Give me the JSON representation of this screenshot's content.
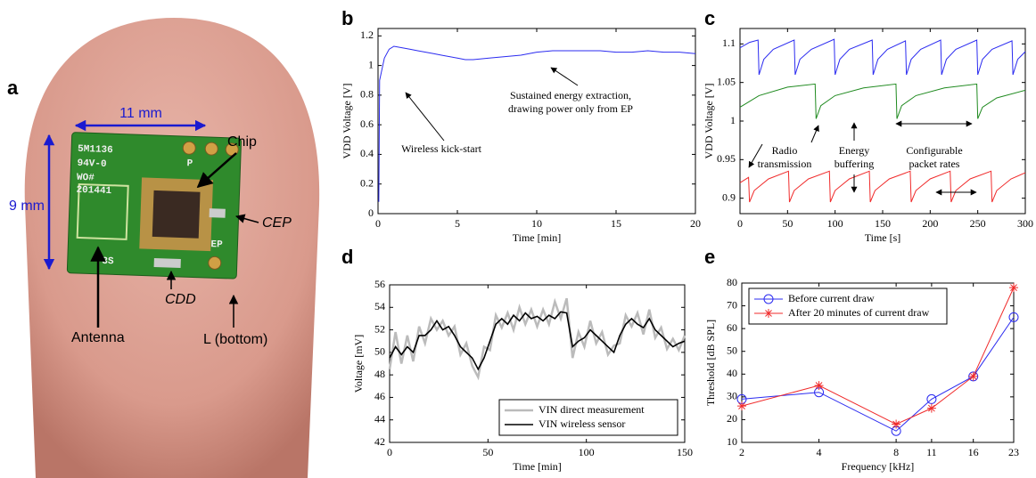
{
  "photo": {
    "panel": "a",
    "labels": [
      "11 mm",
      "9 mm",
      "Chip",
      "CEP",
      "CDD",
      "Antenna",
      "L (bottom)"
    ],
    "chip_text": [
      "5M1136",
      "94V-0",
      "WO#",
      "201441",
      "-3S",
      "P",
      "EP"
    ]
  },
  "chart_data": [
    {
      "type": "line",
      "panel": "b",
      "xlabel": "Time [min]",
      "ylabel": "VDD Voltage [V]",
      "color": "#2b2bf0",
      "x": [
        0.05,
        0.1,
        0.2,
        0.4,
        0.7,
        1,
        1.5,
        2,
        2.5,
        3,
        3.5,
        4,
        4.5,
        5,
        5.5,
        6,
        7,
        8,
        9,
        10,
        11,
        12,
        13,
        14,
        15,
        16,
        17,
        18,
        19,
        20
      ],
      "values": [
        0.08,
        0.9,
        0.95,
        1.05,
        1.11,
        1.13,
        1.12,
        1.11,
        1.1,
        1.09,
        1.08,
        1.07,
        1.06,
        1.05,
        1.04,
        1.04,
        1.05,
        1.06,
        1.07,
        1.09,
        1.1,
        1.1,
        1.1,
        1.1,
        1.09,
        1.09,
        1.1,
        1.09,
        1.09,
        1.08
      ],
      "xlim": [
        0,
        20
      ],
      "xticks": [
        0,
        5,
        10,
        15,
        20
      ],
      "ylim": [
        0,
        1.25
      ],
      "yticks": [
        0,
        0.2,
        0.4,
        0.6,
        0.8,
        1,
        1.2
      ],
      "annotations": [
        [
          "Wireless kick-start"
        ],
        [
          "Sustained energy extraction,",
          "drawing power only from EP"
        ]
      ]
    },
    {
      "type": "line",
      "panel": "c",
      "xlabel": "Time [s]",
      "ylabel": "VDD Voltage [V]",
      "series": [
        {
          "color": "#2b2bf0",
          "x": [
            0,
            10,
            19,
            20,
            25,
            35,
            57,
            58,
            63,
            75,
            99,
            100,
            105,
            115,
            139,
            140,
            145,
            155,
            174,
            175,
            180,
            190,
            211,
            212,
            217,
            227,
            249,
            250,
            255,
            265,
            286,
            287,
            292,
            300
          ],
          "values": [
            1.095,
            1.102,
            1.105,
            1.06,
            1.08,
            1.093,
            1.105,
            1.06,
            1.08,
            1.093,
            1.106,
            1.06,
            1.08,
            1.093,
            1.105,
            1.06,
            1.08,
            1.093,
            1.104,
            1.06,
            1.08,
            1.093,
            1.105,
            1.06,
            1.08,
            1.093,
            1.105,
            1.06,
            1.08,
            1.093,
            1.104,
            1.06,
            1.08,
            1.09
          ]
        },
        {
          "color": "#1f8a1f",
          "x": [
            0,
            20,
            50,
            79,
            80,
            85,
            100,
            130,
            164,
            165,
            170,
            185,
            215,
            249,
            250,
            255,
            270,
            300
          ],
          "values": [
            1.018,
            1.033,
            1.044,
            1.048,
            1.003,
            1.02,
            1.033,
            1.043,
            1.048,
            1.003,
            1.02,
            1.033,
            1.043,
            1.048,
            1.003,
            1.018,
            1.03,
            1.04
          ]
        },
        {
          "color": "#f02b2b",
          "x": [
            0,
            9,
            10,
            15,
            30,
            51,
            52,
            57,
            72,
            94,
            95,
            100,
            115,
            136,
            137,
            142,
            157,
            179,
            180,
            185,
            200,
            221,
            222,
            227,
            242,
            264,
            265,
            270,
            285,
            300
          ],
          "values": [
            0.92,
            0.927,
            0.895,
            0.91,
            0.925,
            0.935,
            0.895,
            0.91,
            0.925,
            0.935,
            0.895,
            0.91,
            0.925,
            0.935,
            0.895,
            0.91,
            0.925,
            0.935,
            0.895,
            0.91,
            0.925,
            0.935,
            0.895,
            0.91,
            0.925,
            0.935,
            0.895,
            0.91,
            0.925,
            0.933
          ]
        }
      ],
      "xlim": [
        0,
        300
      ],
      "xticks": [
        0,
        50,
        100,
        150,
        200,
        250,
        300
      ],
      "ylim": [
        0.88,
        1.12
      ],
      "yticks": [
        0.9,
        0.95,
        1,
        1.05,
        1.1
      ],
      "annotations": [
        [
          "Radio",
          "transmission"
        ],
        [
          "Energy",
          "buffering"
        ],
        [
          "Configurable",
          "packet rates"
        ]
      ]
    },
    {
      "type": "line",
      "panel": "d",
      "xlabel": "Time [min]",
      "ylabel": "Voltage [mV]",
      "legend": "lower right",
      "x": [
        0,
        3,
        6,
        9,
        12,
        15,
        18,
        21,
        24,
        27,
        30,
        33,
        36,
        39,
        42,
        45,
        48,
        51,
        54,
        57,
        60,
        63,
        66,
        69,
        72,
        75,
        78,
        81,
        84,
        87,
        90,
        93,
        96,
        99,
        102,
        105,
        108,
        111,
        114,
        117,
        120,
        123,
        126,
        129,
        132,
        135,
        138,
        141,
        144,
        147,
        150
      ],
      "series": [
        {
          "name": "VIN direct measurement",
          "color": "#bbbbbb",
          "width": 2.5,
          "values": [
            48.5,
            51.8,
            49.0,
            51.5,
            49.2,
            52.3,
            50.8,
            53.0,
            52.0,
            52.8,
            51.5,
            52.3,
            49.8,
            50.8,
            48.8,
            47.8,
            50.5,
            50.2,
            53.3,
            52.2,
            53.5,
            52.0,
            54.0,
            52.5,
            53.8,
            52.3,
            53.8,
            52.5,
            54.5,
            53.0,
            54.8,
            49.5,
            51.8,
            50.5,
            52.8,
            50.8,
            51.8,
            49.8,
            50.6,
            50.8,
            53.3,
            52.3,
            53.5,
            51.6,
            53.8,
            51.3,
            52.2,
            50.3,
            51.2,
            50.2,
            51.5
          ]
        },
        {
          "name": "VIN wireless sensor",
          "color": "#000000",
          "width": 1.6,
          "values": [
            49.5,
            50.5,
            49.8,
            50.5,
            50.0,
            51.5,
            51.5,
            52.0,
            52.8,
            52.0,
            52.3,
            51.5,
            50.5,
            50.0,
            49.5,
            48.5,
            49.5,
            51.0,
            52.5,
            53.0,
            52.5,
            53.3,
            52.8,
            53.5,
            53.0,
            53.2,
            52.8,
            53.3,
            53.0,
            53.6,
            53.5,
            50.5,
            51.0,
            51.3,
            52.0,
            51.5,
            51.0,
            50.5,
            50.0,
            51.5,
            52.5,
            53.0,
            52.5,
            52.2,
            53.0,
            52.0,
            51.5,
            51.0,
            50.5,
            50.8,
            51.0
          ]
        }
      ],
      "xlim": [
        0,
        150
      ],
      "xticks": [
        0,
        50,
        100,
        150
      ],
      "ylim": [
        42,
        56
      ],
      "yticks": [
        42,
        44,
        46,
        48,
        50,
        52,
        54,
        56
      ]
    },
    {
      "type": "line",
      "panel": "e",
      "xlabel": "Frequency [kHz]",
      "ylabel": "Threshold [dB SPL]",
      "legend": "upper left",
      "xscale": "log",
      "x": [
        2,
        4,
        8,
        11,
        16,
        23
      ],
      "series": [
        {
          "name": "Before current draw",
          "color": "#2b2bf0",
          "marker": "circle",
          "values": [
            29,
            32,
            15,
            29,
            39,
            65
          ]
        },
        {
          "name": "After 20 minutes of current draw",
          "color": "#f02b2b",
          "marker": "star",
          "values": [
            26,
            35,
            18,
            25,
            39,
            78
          ]
        }
      ],
      "xlim": [
        2,
        23
      ],
      "xticks": [
        2,
        4,
        8,
        11,
        16,
        23
      ],
      "ylim": [
        10,
        80
      ],
      "yticks": [
        10,
        20,
        30,
        40,
        50,
        60,
        70,
        80
      ]
    }
  ]
}
